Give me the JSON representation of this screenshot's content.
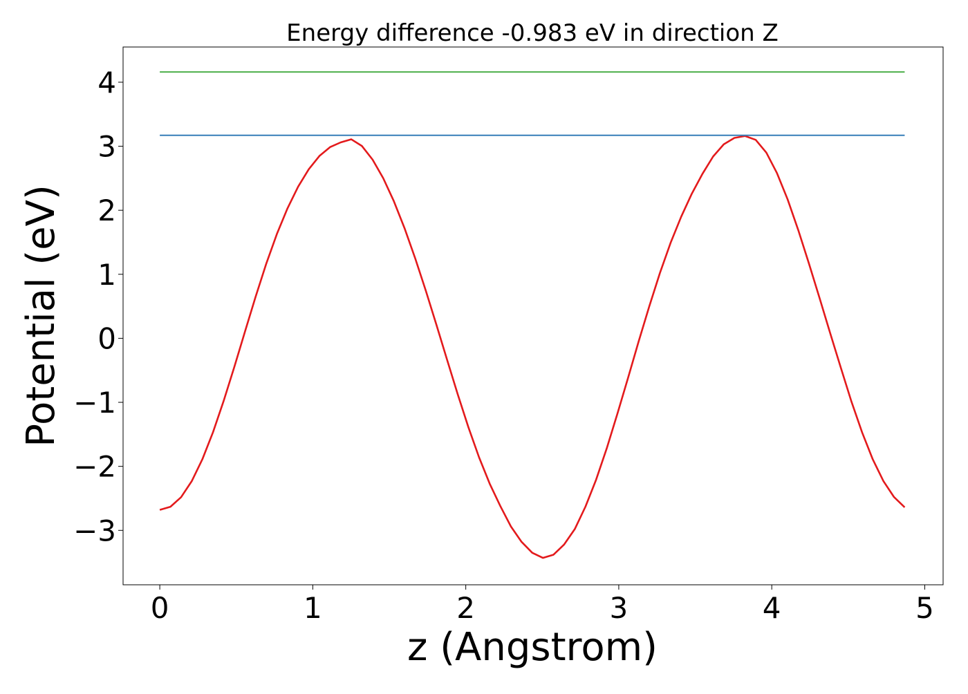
{
  "chart_data": {
    "type": "line",
    "title": "Energy difference -0.983 eV in direction Z",
    "xlabel": "z (Angstrom)",
    "ylabel": "Potential (eV)",
    "xlim": [
      -0.24,
      5.12
    ],
    "ylim": [
      -3.85,
      4.55
    ],
    "xticks": [
      0,
      1,
      2,
      3,
      4,
      5
    ],
    "xtick_labels": [
      "0",
      "1",
      "2",
      "3",
      "4",
      "5"
    ],
    "yticks": [
      -3,
      -2,
      -1,
      0,
      1,
      2,
      3,
      4
    ],
    "ytick_labels": [
      "−3",
      "−2",
      "−1",
      "0",
      "1",
      "2",
      "3",
      "4"
    ],
    "grid": false,
    "series": [
      {
        "color": "#e31a1c",
        "x": [
          0.0,
          0.0696,
          0.1391,
          0.2087,
          0.2782,
          0.3478,
          0.4173,
          0.4869,
          0.5564,
          0.626,
          0.6955,
          0.7651,
          0.8347,
          0.9042,
          0.9738,
          1.0433,
          1.1129,
          1.1824,
          1.252,
          1.3215,
          1.3911,
          1.4606,
          1.5302,
          1.5997,
          1.6693,
          1.7389,
          1.8084,
          1.878,
          1.9475,
          2.0171,
          2.0866,
          2.1562,
          2.2257,
          2.2953,
          2.3648,
          2.4344,
          2.504,
          2.5735,
          2.6431,
          2.7126,
          2.7822,
          2.8517,
          2.9213,
          2.9908,
          3.0604,
          3.1299,
          3.1995,
          3.269,
          3.3386,
          3.4082,
          3.4777,
          3.5473,
          3.6168,
          3.6864,
          3.7559,
          3.8255,
          3.895,
          3.9646,
          4.0341,
          4.1037,
          4.1733,
          4.2428,
          4.3124,
          4.3819,
          4.4515,
          4.521,
          4.5906,
          4.6601,
          4.7297,
          4.7992,
          4.8688
        ],
        "y": [
          -2.68,
          -2.631,
          -2.482,
          -2.232,
          -1.89,
          -1.467,
          -0.979,
          -0.449,
          0.101,
          0.647,
          1.163,
          1.628,
          2.03,
          2.368,
          2.641,
          2.848,
          2.986,
          3.06,
          3.108,
          3.003,
          2.79,
          2.5,
          2.14,
          1.72,
          1.25,
          0.743,
          0.209,
          -0.337,
          -0.876,
          -1.389,
          -1.858,
          -2.27,
          -2.62,
          -2.94,
          -3.18,
          -3.35,
          -3.43,
          -3.38,
          -3.22,
          -2.98,
          -2.63,
          -2.21,
          -1.72,
          -1.18,
          -0.62,
          -0.05,
          0.5,
          1.02,
          1.49,
          1.9,
          2.26,
          2.57,
          2.84,
          3.03,
          3.13,
          3.16,
          3.1,
          2.9,
          2.58,
          2.17,
          1.69,
          1.17,
          0.63,
          0.08,
          -0.46,
          -0.99,
          -1.47,
          -1.89,
          -2.23,
          -2.48,
          -2.64
        ]
      },
      {
        "color": "#377eb8",
        "x": [
          0.0,
          4.8688
        ],
        "y": [
          3.17,
          3.17
        ]
      },
      {
        "color": "#4daf4a",
        "x": [
          0.0,
          4.8688
        ],
        "y": [
          4.16,
          4.16
        ]
      }
    ]
  }
}
